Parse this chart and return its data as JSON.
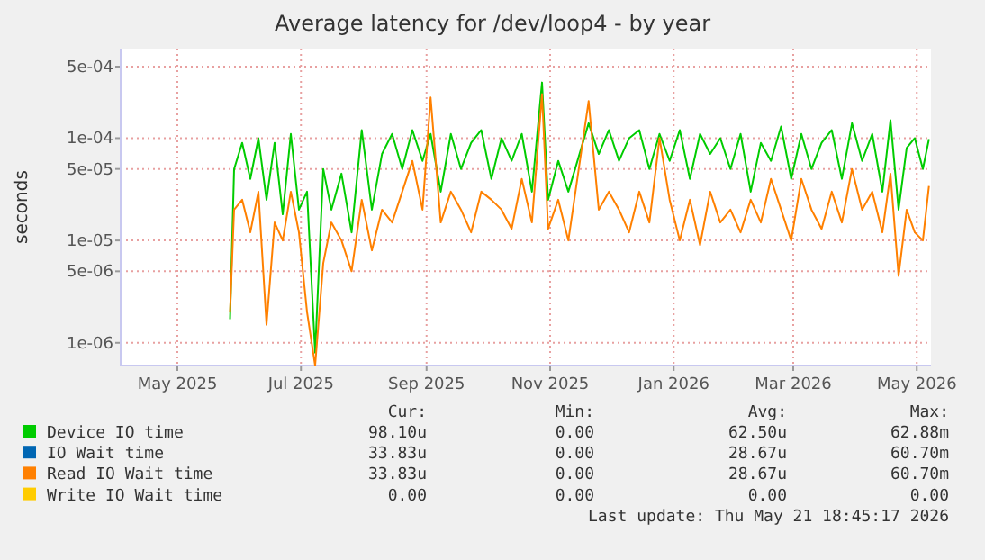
{
  "chart_data": {
    "type": "line",
    "title": "Average latency for /dev/loop4 - by year",
    "ylabel": "seconds",
    "log": "y",
    "grid": true,
    "legend": "bottom",
    "x": [
      "2025-05-27",
      "2025-05-29",
      "2025-06-02",
      "2025-06-06",
      "2025-06-10",
      "2025-06-14",
      "2025-06-18",
      "2025-06-22",
      "2025-06-26",
      "2025-06-30",
      "2025-07-04",
      "2025-07-08",
      "2025-07-12",
      "2025-07-16",
      "2025-07-21",
      "2025-07-26",
      "2025-07-31",
      "2025-08-05",
      "2025-08-10",
      "2025-08-15",
      "2025-08-20",
      "2025-08-25",
      "2025-08-30",
      "2025-09-03",
      "2025-09-08",
      "2025-09-13",
      "2025-09-18",
      "2025-09-23",
      "2025-09-28",
      "2025-10-03",
      "2025-10-08",
      "2025-10-13",
      "2025-10-18",
      "2025-10-23",
      "2025-10-28",
      "2025-10-31",
      "2025-11-05",
      "2025-11-10",
      "2025-11-20",
      "2025-11-25",
      "2025-11-30",
      "2025-12-05",
      "2025-12-10",
      "2025-12-15",
      "2025-12-20",
      "2025-12-25",
      "2025-12-30",
      "2026-01-04",
      "2026-01-09",
      "2026-01-14",
      "2026-01-19",
      "2026-01-24",
      "2026-01-29",
      "2026-02-03",
      "2026-02-08",
      "2026-02-13",
      "2026-02-18",
      "2026-02-23",
      "2026-02-28",
      "2026-03-05",
      "2026-03-10",
      "2026-03-15",
      "2026-03-20",
      "2026-03-25",
      "2026-03-30",
      "2026-04-04",
      "2026-04-09",
      "2026-04-14",
      "2026-04-18",
      "2026-04-22",
      "2026-04-26",
      "2026-04-30",
      "2026-05-04",
      "2026-05-07"
    ],
    "xlim": [
      "2025-04-03",
      "2026-05-08"
    ],
    "xticks": [
      {
        "value": "2025-05-01",
        "label": "May 2025"
      },
      {
        "value": "2025-07-01",
        "label": "Jul 2025"
      },
      {
        "value": "2025-09-01",
        "label": "Sep 2025"
      },
      {
        "value": "2025-11-01",
        "label": "Nov 2025"
      },
      {
        "value": "2026-01-01",
        "label": "Jan 2026"
      },
      {
        "value": "2026-03-01",
        "label": "Mar 2026"
      },
      {
        "value": "2026-05-01",
        "label": "May 2026"
      }
    ],
    "ylim": [
      6e-07,
      0.00075
    ],
    "yticks": [
      {
        "value": 1e-06,
        "label": "1e-06"
      },
      {
        "value": 5e-06,
        "label": "5e-06"
      },
      {
        "value": 1e-05,
        "label": "1e-05"
      },
      {
        "value": 5e-05,
        "label": "5e-05"
      },
      {
        "value": 0.0001,
        "label": "1e-04"
      },
      {
        "value": 0.0005,
        "label": "5e-04"
      }
    ],
    "series": [
      {
        "name": "Device IO time",
        "color": "#00cc00",
        "values": [
          1.7e-06,
          5e-05,
          9e-05,
          4e-05,
          0.0001,
          2.5e-05,
          9e-05,
          1.8e-05,
          0.00011,
          2e-05,
          3e-05,
          8e-07,
          5e-05,
          2e-05,
          4.5e-05,
          1.2e-05,
          0.00012,
          2e-05,
          7e-05,
          0.00011,
          5e-05,
          0.00012,
          6e-05,
          0.00011,
          3e-05,
          0.00011,
          5e-05,
          9e-05,
          0.00012,
          4e-05,
          0.0001,
          6e-05,
          0.00011,
          3e-05,
          0.00035,
          2.5e-05,
          6e-05,
          3e-05,
          0.00014,
          7e-05,
          0.00012,
          6e-05,
          0.0001,
          0.00012,
          5e-05,
          0.00011,
          6e-05,
          0.00012,
          4e-05,
          0.00011,
          7e-05,
          0.0001,
          5e-05,
          0.00011,
          3e-05,
          9e-05,
          6e-05,
          0.00013,
          4e-05,
          0.00011,
          5e-05,
          9e-05,
          0.00012,
          4e-05,
          0.00014,
          6e-05,
          0.00011,
          3e-05,
          0.00015,
          2e-05,
          8e-05,
          0.0001,
          5e-05,
          9.8e-05
        ]
      },
      {
        "name": "IO Wait time",
        "color": "#0066b3",
        "values": [
          null,
          null,
          null,
          null,
          null,
          null,
          null,
          null,
          null,
          null,
          null,
          null,
          null,
          null,
          null,
          null,
          null,
          null,
          null,
          null,
          null,
          null,
          null,
          null,
          null,
          null,
          null,
          null,
          null,
          null,
          null,
          null,
          null,
          null,
          null,
          null,
          null,
          null,
          null,
          null,
          null,
          null,
          null,
          null,
          null,
          null,
          null,
          null,
          null,
          null,
          null,
          null,
          null,
          null,
          null,
          null,
          null,
          null,
          null,
          null,
          null,
          null,
          null,
          null,
          null,
          null,
          null,
          null,
          null,
          null,
          null,
          null,
          null,
          null
        ]
      },
      {
        "name": "Read IO Wait time",
        "color": "#ff8000",
        "values": [
          2e-06,
          2e-05,
          2.5e-05,
          1.2e-05,
          3e-05,
          1.5e-06,
          1.5e-05,
          1e-05,
          3e-05,
          1.2e-05,
          2e-06,
          6e-07,
          6e-06,
          1.5e-05,
          1e-05,
          5e-06,
          2.5e-05,
          8e-06,
          2e-05,
          1.5e-05,
          3e-05,
          6e-05,
          2e-05,
          0.00025,
          1.5e-05,
          3e-05,
          2e-05,
          1.2e-05,
          3e-05,
          2.5e-05,
          2e-05,
          1.3e-05,
          4e-05,
          1.5e-05,
          0.00027,
          1.3e-05,
          2.5e-05,
          1e-05,
          0.00023,
          2e-05,
          3e-05,
          2e-05,
          1.2e-05,
          3e-05,
          1.5e-05,
          0.0001,
          2.5e-05,
          1e-05,
          2.5e-05,
          9e-06,
          3e-05,
          1.5e-05,
          2e-05,
          1.2e-05,
          2.5e-05,
          1.5e-05,
          4e-05,
          2e-05,
          1e-05,
          4e-05,
          2e-05,
          1.3e-05,
          3e-05,
          1.5e-05,
          5e-05,
          2e-05,
          3e-05,
          1.2e-05,
          4.5e-05,
          4.5e-06,
          2e-05,
          1.2e-05,
          1e-05,
          3.4e-05
        ]
      },
      {
        "name": "Write IO Wait time",
        "color": "#ffcc00",
        "values": [
          null,
          null,
          null,
          null,
          null,
          null,
          null,
          null,
          null,
          null,
          null,
          null,
          null,
          null,
          null,
          null,
          null,
          null,
          null,
          null,
          null,
          null,
          null,
          null,
          null,
          null,
          null,
          null,
          null,
          null,
          null,
          null,
          null,
          null,
          null,
          null,
          null,
          null,
          null,
          null,
          null,
          null,
          null,
          null,
          null,
          null,
          null,
          null,
          null,
          null,
          null,
          null,
          null,
          null,
          null,
          null,
          null,
          null,
          null,
          null,
          null,
          null,
          null,
          null,
          null,
          null,
          null,
          null,
          null,
          null,
          null,
          null,
          null,
          null
        ]
      }
    ],
    "annotations": [
      "Cur:",
      "Min:",
      "Avg:",
      "Max:",
      "98.10u",
      "0.00",
      "62.50u",
      "62.88m",
      "33.83u",
      "0.00",
      "28.67u",
      "60.70m",
      "33.83u",
      "0.00",
      "28.67u",
      "60.70m",
      "0.00",
      "0.00",
      "0.00",
      "0.00",
      "Last update: Thu May 21 18:45:17 2026"
    ]
  }
}
